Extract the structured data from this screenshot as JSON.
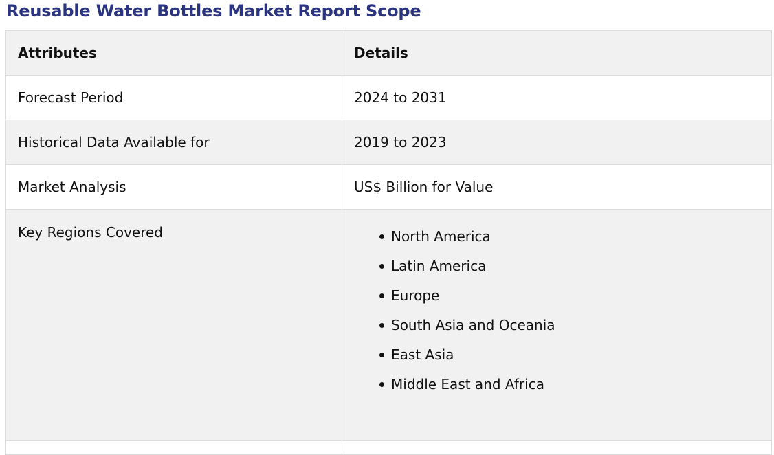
{
  "page": {
    "title": "Reusable Water Bottles Market Report Scope"
  },
  "table": {
    "headers": [
      "Attributes",
      "Details"
    ],
    "rows": [
      {
        "attribute": "Forecast Period",
        "detail": "2024 to 2031"
      },
      {
        "attribute": "Historical Data Available for",
        "detail": "2019 to 2023"
      },
      {
        "attribute": "Market Analysis",
        "detail": "US$ Billion for Value"
      }
    ],
    "regions": {
      "attribute": "Key Regions Covered",
      "items": [
        "North America",
        "Latin America",
        "Europe",
        "South Asia and Oceania",
        "East Asia",
        "Middle East and Africa"
      ]
    }
  },
  "colors": {
    "title": "#2a3480",
    "header_bg": "#f1f1f1",
    "stripe_bg": "#f1f1f1",
    "border": "#dcdcdc"
  }
}
